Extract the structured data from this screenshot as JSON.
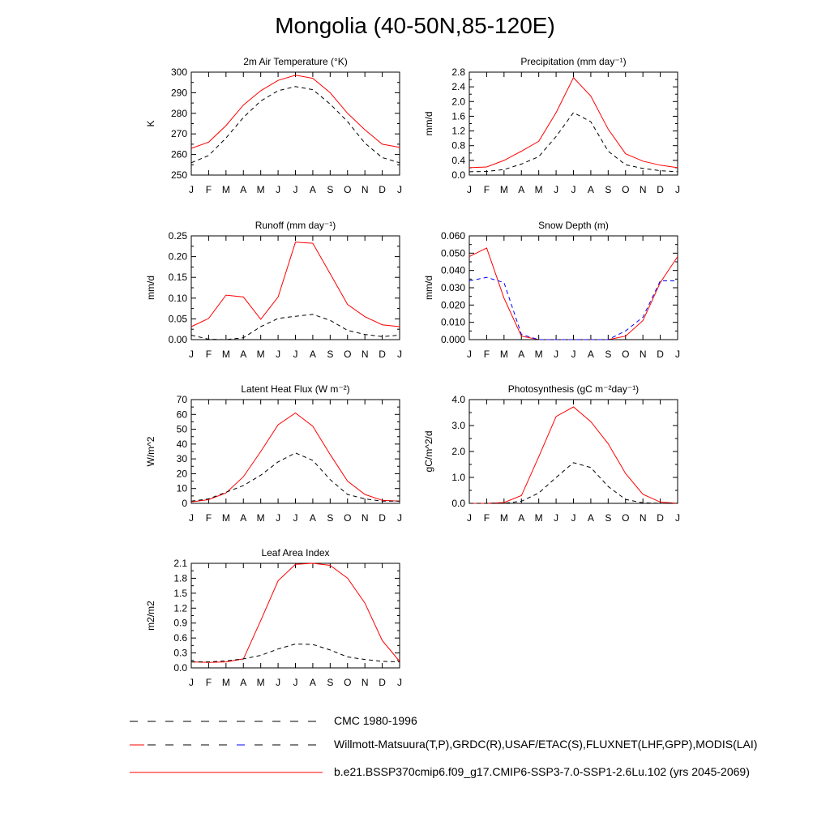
{
  "page": {
    "title": "Mongolia (40-50N,85-120E)"
  },
  "legend": [
    {
      "label": "CMC 1980-1996",
      "style": "dashed",
      "color": "#000000"
    },
    {
      "label": "Willmott-Matsuura(T,P),GRDC(R),USAF/ETAC(S),FLUXNET(LHF,GPP),MODIS(LAI)",
      "style": "dashed",
      "color": "#000000"
    },
    {
      "label": "b.e21.BSSP370cmip6.f09_g17.CMIP6-SSP3-7.0-SSP1-2.6Lu.102 (yrs 2045-2069)",
      "style": "solid",
      "color": "#ff0000"
    }
  ],
  "chart_data": [
    {
      "type": "line",
      "title": "2m Air Temperature (°K)",
      "ylabel": "K",
      "ylim": [
        250,
        300
      ],
      "yticks": [
        "250",
        "260",
        "270",
        "280",
        "290",
        "300"
      ],
      "categories": [
        "J",
        "F",
        "M",
        "A",
        "M",
        "J",
        "J",
        "A",
        "S",
        "O",
        "N",
        "D",
        "J"
      ],
      "series": [
        {
          "values": [
            263,
            266,
            274,
            284,
            291,
            296,
            298.5,
            297,
            290,
            280,
            272,
            265,
            263.5
          ],
          "color": "#ff0000",
          "dash": "solid"
        },
        {
          "values": [
            256,
            259.5,
            268,
            278,
            286,
            291,
            293,
            291.5,
            284.5,
            276,
            265.5,
            258.5,
            256
          ],
          "color": "#000000",
          "dash": "dashed"
        }
      ]
    },
    {
      "type": "line",
      "title": "Precipitation (mm day⁻¹)",
      "ylabel": "mm/d",
      "ylim": [
        0,
        2.8
      ],
      "yticks": [
        "0.0",
        "0.4",
        "0.8",
        "1.2",
        "1.6",
        "2.0",
        "2.4",
        "2.8"
      ],
      "categories": [
        "J",
        "F",
        "M",
        "A",
        "M",
        "J",
        "J",
        "A",
        "S",
        "O",
        "N",
        "D",
        "J"
      ],
      "series": [
        {
          "values": [
            0.2,
            0.22,
            0.4,
            0.65,
            0.92,
            1.7,
            2.65,
            2.15,
            1.25,
            0.58,
            0.38,
            0.27,
            0.2
          ],
          "color": "#ff0000",
          "dash": "solid"
        },
        {
          "values": [
            0.09,
            0.1,
            0.15,
            0.3,
            0.5,
            1.05,
            1.7,
            1.45,
            0.65,
            0.28,
            0.18,
            0.12,
            0.09
          ],
          "color": "#000000",
          "dash": "dashed"
        }
      ]
    },
    {
      "type": "line",
      "title": "Runoff (mm day⁻¹)",
      "ylabel": "mm/d",
      "ylim": [
        0,
        0.28
      ],
      "yticks": [
        "0.00",
        "0.05",
        "0.10",
        "0.15",
        "0.20",
        "0.25"
      ],
      "categories": [
        "J",
        "F",
        "M",
        "A",
        "M",
        "J",
        "J",
        "A",
        "S",
        "O",
        "N",
        "D",
        "J"
      ],
      "series": [
        {
          "values": [
            0.035,
            0.057,
            0.12,
            0.115,
            0.055,
            0.115,
            0.263,
            0.26,
            0.178,
            0.095,
            0.062,
            0.04,
            0.035
          ],
          "color": "#ff0000",
          "dash": "solid"
        },
        {
          "values": [
            0.012,
            0.001,
            0.0,
            0.005,
            0.035,
            0.057,
            0.063,
            0.068,
            0.052,
            0.025,
            0.014,
            0.008,
            0.012
          ],
          "color": "#000000",
          "dash": "dashed"
        }
      ]
    },
    {
      "type": "line",
      "title": "Snow Depth (m)",
      "ylabel": "mm/d",
      "ylim": [
        0,
        0.06
      ],
      "yticks": [
        "0.000",
        "0.010",
        "0.020",
        "0.030",
        "0.040",
        "0.050",
        "0.060"
      ],
      "categories": [
        "J",
        "F",
        "M",
        "A",
        "M",
        "J",
        "J",
        "A",
        "S",
        "O",
        "N",
        "D",
        "J"
      ],
      "series": [
        {
          "values": [
            0.048,
            0.053,
            0.024,
            0.002,
            0.0,
            0.0,
            0.0,
            0.0,
            0.0,
            0.002,
            0.011,
            0.033,
            0.048
          ],
          "color": "#ff0000",
          "dash": "solid"
        },
        {
          "values": [
            0.0,
            0.0,
            0.0,
            0.0,
            0.0,
            0.0,
            0.0,
            0.0,
            0.0,
            0.0,
            0.0,
            0.0,
            0.0
          ],
          "color": "#000000",
          "dash": "dashed"
        },
        {
          "values": [
            0.034,
            0.036,
            0.033,
            0.003,
            0.0,
            0.0,
            0.0,
            0.0,
            0.0,
            0.005,
            0.013,
            0.034,
            0.034
          ],
          "color": "#0000ff",
          "dash": "dashed"
        }
      ]
    },
    {
      "type": "line",
      "title": "Latent Heat Flux (W m⁻²)",
      "ylabel": "W/m^2",
      "ylim": [
        0,
        70
      ],
      "yticks": [
        "0",
        "10",
        "20",
        "30",
        "40",
        "50",
        "60",
        "70"
      ],
      "categories": [
        "J",
        "F",
        "M",
        "A",
        "M",
        "J",
        "J",
        "A",
        "S",
        "O",
        "N",
        "D",
        "J"
      ],
      "series": [
        {
          "values": [
            1,
            2.5,
            7,
            18,
            35,
            53,
            61,
            52,
            33,
            15,
            6,
            2,
            1.5
          ],
          "color": "#ff0000",
          "dash": "solid"
        },
        {
          "values": [
            1.5,
            3,
            7.5,
            12,
            19,
            28,
            34,
            29,
            16,
            6,
            3,
            1.5,
            1.5
          ],
          "color": "#000000",
          "dash": "dashed"
        }
      ]
    },
    {
      "type": "line",
      "title": "Photosynthesis (gC m⁻²day⁻¹)",
      "ylabel": "gC/m^2/d",
      "ylim": [
        0,
        4.0
      ],
      "yticks": [
        "0.0",
        "1.0",
        "2.0",
        "3.0",
        "4.0"
      ],
      "categories": [
        "J",
        "F",
        "M",
        "A",
        "M",
        "J",
        "J",
        "A",
        "S",
        "O",
        "N",
        "D",
        "J"
      ],
      "series": [
        {
          "values": [
            0.0,
            0.0,
            0.03,
            0.3,
            1.8,
            3.35,
            3.72,
            3.15,
            2.3,
            1.15,
            0.35,
            0.05,
            0.0
          ],
          "color": "#ff0000",
          "dash": "solid"
        },
        {
          "values": [
            0.0,
            0.0,
            0.0,
            0.08,
            0.4,
            1.0,
            1.57,
            1.38,
            0.65,
            0.15,
            0.02,
            0.0,
            0.0
          ],
          "color": "#000000",
          "dash": "dashed"
        }
      ]
    },
    {
      "type": "line",
      "title": "Leaf Area Index",
      "ylabel": "m2/m2",
      "ylim": [
        0,
        2.1
      ],
      "yticks": [
        "0.0",
        "0.3",
        "0.6",
        "0.9",
        "1.2",
        "1.5",
        "1.8",
        "2.1"
      ],
      "categories": [
        "J",
        "F",
        "M",
        "A",
        "M",
        "J",
        "J",
        "A",
        "S",
        "O",
        "N",
        "D",
        "J"
      ],
      "series": [
        {
          "values": [
            0.12,
            0.11,
            0.12,
            0.18,
            0.95,
            1.75,
            2.08,
            2.1,
            2.06,
            1.8,
            1.3,
            0.55,
            0.13
          ],
          "color": "#ff0000",
          "dash": "solid"
        },
        {
          "values": [
            0.12,
            0.12,
            0.14,
            0.18,
            0.25,
            0.38,
            0.48,
            0.47,
            0.36,
            0.22,
            0.17,
            0.13,
            0.12
          ],
          "color": "#000000",
          "dash": "dashed"
        }
      ]
    }
  ]
}
